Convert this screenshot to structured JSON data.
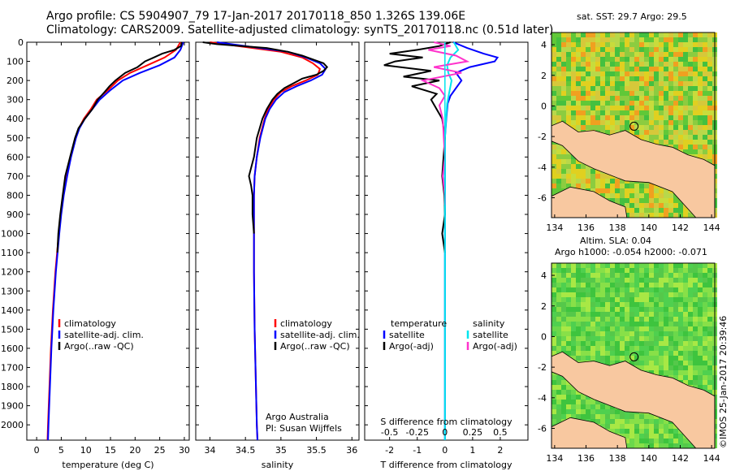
{
  "titles": {
    "line1": "Argo profile: CS 5904907_79 17-Jan-2017 20170118_850 1.326S 139.06E",
    "line2": "Climatology: CARS2009. Satellite-adjusted climatology: synTS_20170118.nc (0.51d later)"
  },
  "colors": {
    "climatology": "#ff0000",
    "satellite": "#0000ff",
    "argo": "#000000",
    "sal_satellite": "#00e5ee",
    "sal_argo": "#ff33cc",
    "land": "#f8c8a0"
  },
  "chart_data": [
    {
      "type": "line",
      "id": "temperature",
      "xlabel": "temperature (deg C)",
      "xticks": [
        "0",
        "5",
        "10",
        "15",
        "20",
        "25",
        "30"
      ],
      "xlim": [
        -2,
        31
      ],
      "ylim": [
        2080,
        0
      ],
      "yticks": [
        0,
        100,
        200,
        300,
        400,
        500,
        600,
        700,
        800,
        900,
        1000,
        1100,
        1200,
        1300,
        1400,
        1500,
        1600,
        1700,
        1800,
        1900,
        2000
      ],
      "legend": [
        "climatology",
        "satellite-adj. clim.",
        "Argo(..raw -QC)"
      ],
      "series": [
        {
          "name": "climatology",
          "color": "#ff0000",
          "depth": [
            0,
            40,
            80,
            120,
            160,
            200,
            250,
            300,
            350,
            400,
            450,
            500,
            600,
            700,
            800,
            900,
            1000,
            1200,
            1400,
            1600,
            1800,
            2000,
            2080
          ],
          "values": [
            29.2,
            28.3,
            26.0,
            22.5,
            19.0,
            16.5,
            14.5,
            12.2,
            11.0,
            9.6,
            8.6,
            7.9,
            6.9,
            6.1,
            5.4,
            4.9,
            4.5,
            3.8,
            3.3,
            2.9,
            2.6,
            2.3,
            2.2
          ]
        },
        {
          "name": "satellite",
          "color": "#0000ff",
          "depth": [
            0,
            40,
            80,
            120,
            160,
            200,
            250,
            300,
            350,
            400,
            450,
            500,
            600,
            700,
            800,
            900,
            1000,
            1200,
            1400,
            1600,
            1800,
            2000,
            2080
          ],
          "values": [
            29.8,
            29.2,
            28.0,
            25.0,
            21.0,
            17.5,
            15.0,
            12.8,
            11.3,
            9.8,
            8.7,
            8.0,
            7.0,
            6.2,
            5.5,
            5.0,
            4.6,
            3.9,
            3.4,
            3.0,
            2.7,
            2.4,
            2.3
          ]
        },
        {
          "name": "argo",
          "color": "#000000",
          "depth": [
            0,
            20,
            40,
            60,
            80,
            100,
            130,
            160,
            200,
            230,
            260,
            300,
            350,
            400,
            450,
            500,
            600,
            700,
            800,
            900,
            1000,
            1100
          ],
          "values": [
            29.5,
            29.3,
            28.0,
            25.5,
            23.8,
            22.0,
            20.5,
            18.0,
            16.0,
            14.8,
            13.8,
            12.4,
            11.3,
            9.8,
            8.5,
            7.8,
            6.8,
            5.8,
            5.3,
            4.8,
            4.4,
            4.2
          ]
        }
      ]
    },
    {
      "type": "line",
      "id": "salinity",
      "xlabel": "salinity",
      "xticks": [
        "34",
        "34.5",
        "35",
        "35.5",
        "36"
      ],
      "xlim": [
        33.8,
        36.1
      ],
      "ylim": [
        2080,
        0
      ],
      "legend": [
        "climatology",
        "satellite-adj. clim.",
        "Argo(..raw -QC)"
      ],
      "annotation": [
        "Argo Australia",
        "PI: Susan Wijffels"
      ],
      "series": [
        {
          "name": "climatology",
          "color": "#ff0000",
          "depth": [
            0,
            20,
            50,
            80,
            110,
            140,
            170,
            200,
            230,
            260,
            300,
            350,
            400,
            500,
            600,
            700,
            800,
            900,
            1000,
            1200,
            1500,
            2000,
            2080
          ],
          "values": [
            34.0,
            34.4,
            35.0,
            35.3,
            35.45,
            35.55,
            35.52,
            35.35,
            35.15,
            35.0,
            34.9,
            34.82,
            34.77,
            34.7,
            34.66,
            34.63,
            34.62,
            34.62,
            34.62,
            34.62,
            34.63,
            34.66,
            34.67
          ]
        },
        {
          "name": "satellite",
          "color": "#0000ff",
          "depth": [
            0,
            20,
            50,
            80,
            110,
            140,
            170,
            200,
            230,
            260,
            300,
            350,
            400,
            500,
            600,
            700,
            800,
            900,
            1000,
            1200,
            1500,
            2000,
            2080
          ],
          "values": [
            34.1,
            34.5,
            35.1,
            35.35,
            35.55,
            35.63,
            35.58,
            35.42,
            35.22,
            35.05,
            34.93,
            34.84,
            34.78,
            34.71,
            34.66,
            34.63,
            34.62,
            34.62,
            34.62,
            34.62,
            34.63,
            34.66,
            34.67
          ]
        },
        {
          "name": "argo",
          "color": "#000000",
          "depth": [
            0,
            10,
            30,
            50,
            70,
            90,
            110,
            130,
            150,
            170,
            190,
            210,
            240,
            270,
            300,
            350,
            400,
            450,
            500,
            600,
            700,
            750,
            800,
            900,
            1000
          ],
          "values": [
            33.9,
            34.1,
            34.8,
            35.1,
            35.3,
            35.45,
            35.6,
            35.65,
            35.6,
            35.5,
            35.3,
            35.2,
            35.05,
            34.95,
            34.88,
            34.8,
            34.74,
            34.7,
            34.66,
            34.62,
            34.55,
            34.58,
            34.6,
            34.6,
            34.62
          ]
        }
      ]
    },
    {
      "type": "line",
      "id": "difference",
      "xlabel": "T difference from climatology",
      "xlabel_top": "S difference from climatology",
      "xticks": [
        "-2",
        "-1",
        "0",
        "1",
        "2"
      ],
      "xticks_top": [
        "-0.5",
        "-0.25",
        "0",
        "0.25",
        "0.5"
      ],
      "xlim": [
        -2.9,
        3.0
      ],
      "ylim": [
        2080,
        0
      ],
      "legend_headers": [
        "temperature",
        "salinity"
      ],
      "legend": [
        "satellite",
        "Argo(-adj)",
        "satellite",
        "Argo(-adj)"
      ],
      "series": [
        {
          "name": "T satellite",
          "color": "#0000ff",
          "depth": [
            0,
            30,
            60,
            80,
            100,
            130,
            160,
            200,
            240,
            280,
            320,
            400,
            500,
            600,
            700,
            800,
            900,
            1000,
            1200,
            1500,
            2000,
            2080
          ],
          "values": [
            0.3,
            0.8,
            1.4,
            1.9,
            1.8,
            0.9,
            0.4,
            0.6,
            0.4,
            0.2,
            0.1,
            0.05,
            0.0,
            0.0,
            0.0,
            0.0,
            0.0,
            0.0,
            0.0,
            0.0,
            0.0,
            0.0
          ]
        },
        {
          "name": "T argo",
          "color": "#000000",
          "depth": [
            0,
            20,
            40,
            60,
            80,
            100,
            120,
            150,
            180,
            200,
            230,
            270,
            300,
            350,
            400,
            500,
            600,
            700,
            800,
            900,
            1000,
            1100
          ],
          "values": [
            0.2,
            -0.2,
            -1.0,
            -2.0,
            -0.8,
            -1.8,
            -2.2,
            -0.5,
            -1.5,
            -0.2,
            -1.2,
            -0.3,
            -0.5,
            -0.3,
            -0.1,
            0.0,
            -0.05,
            -0.1,
            -0.02,
            0.0,
            -0.1,
            0.0
          ]
        },
        {
          "name": "S satellite",
          "color": "#00e5ee",
          "depth": [
            0,
            40,
            80,
            120,
            160,
            200,
            260,
            320,
            400,
            500,
            600,
            700,
            800,
            900,
            1000,
            1200,
            1500,
            2000,
            2080
          ],
          "values": [
            0.08,
            0.12,
            0.05,
            0.02,
            0.03,
            0.06,
            0.04,
            0.02,
            0.01,
            0.0,
            0.0,
            0.0,
            0.0,
            0.0,
            0.0,
            0.0,
            0.0,
            0.0,
            0.0
          ]
        },
        {
          "name": "S argo",
          "color": "#ff33cc",
          "depth": [
            0,
            20,
            40,
            70,
            100,
            130,
            160,
            200,
            240,
            280,
            330,
            400,
            500,
            600,
            700,
            800,
            850
          ],
          "values": [
            -0.1,
            0.05,
            -0.15,
            0.1,
            0.2,
            -0.1,
            0.15,
            -0.2,
            -0.05,
            0.0,
            -0.05,
            -0.02,
            -0.01,
            0.0,
            -0.02,
            0.0,
            0.0
          ]
        }
      ]
    },
    {
      "type": "heatmap",
      "id": "sst_map",
      "title": "sat. SST: 29.7 Argo: 29.5",
      "xticks": [
        "134",
        "136",
        "138",
        "140",
        "142",
        "144"
      ],
      "yticks": [
        "4",
        "2",
        "0",
        "-2",
        "-4",
        "-6"
      ],
      "marker": {
        "lon": 139.06,
        "lat": -1.326
      }
    },
    {
      "type": "heatmap",
      "id": "sla_map",
      "title_line1": "Altim. SLA: 0.04",
      "title_line2": "Argo h1000: -0.054 h2000: -0.071",
      "xticks": [
        "134",
        "136",
        "138",
        "140",
        "142",
        "144"
      ],
      "yticks": [
        "4",
        "2",
        "0",
        "-2",
        "-4",
        "-6"
      ],
      "marker": {
        "lon": 139.06,
        "lat": -1.326
      }
    }
  ],
  "footer": {
    "vertical_text": "©IMOS 25-Jan-2017 20:39:46"
  }
}
